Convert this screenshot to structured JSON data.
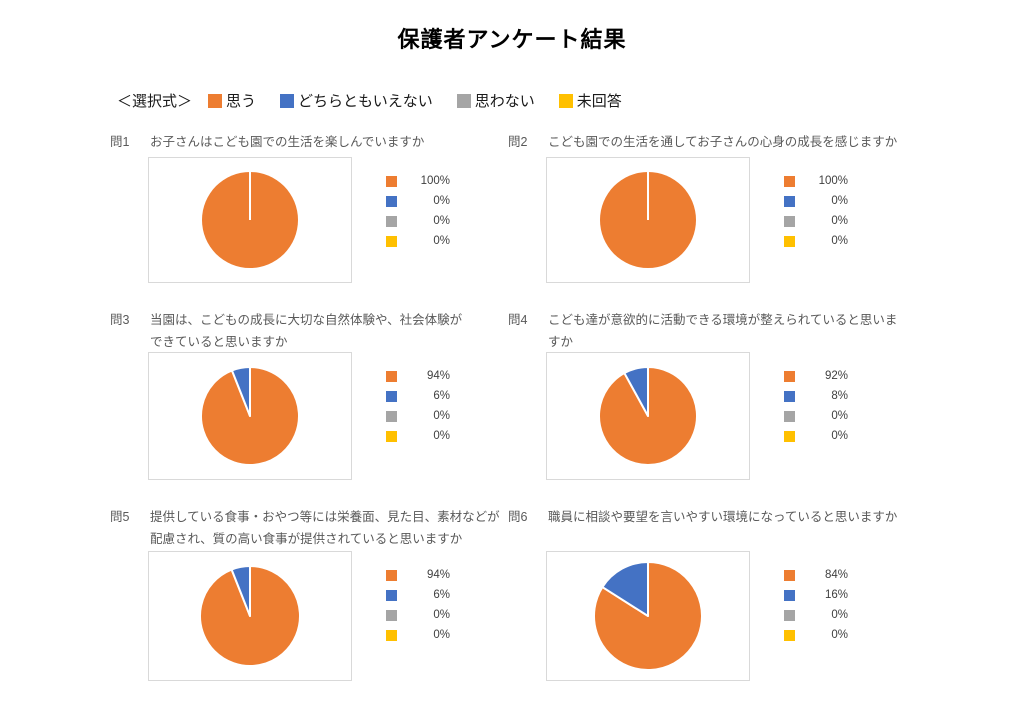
{
  "title": "保護者アンケート結果",
  "colors": [
    "#ED7D31",
    "#4472C4",
    "#A5A5A5",
    "#FFC000"
  ],
  "legend": {
    "prefix": "＜選択式＞",
    "items": [
      "思う",
      "どちらともいえない",
      "思わない",
      "未回答"
    ]
  },
  "chart_data": [
    {
      "type": "pie",
      "question_no": "問1",
      "question": "お子さんはこども園での生活を楽しんでいますか",
      "categories": [
        "思う",
        "どちらともいえない",
        "思わない",
        "未回答"
      ],
      "values": [
        100,
        0,
        0,
        0
      ],
      "labels": [
        "100%",
        "0%",
        "0%",
        "0%"
      ],
      "legend_position": "right"
    },
    {
      "type": "pie",
      "question_no": "問2",
      "question": "こども園での生活を通してお子さんの心身の成長を感じますか",
      "categories": [
        "思う",
        "どちらともいえない",
        "思わない",
        "未回答"
      ],
      "values": [
        100,
        0,
        0,
        0
      ],
      "labels": [
        "100%",
        "0%",
        "0%",
        "0%"
      ],
      "legend_position": "right"
    },
    {
      "type": "pie",
      "question_no": "問3",
      "question": "当園は、こどもの成長に大切な自然体験や、社会体験が\nできていると思いますか",
      "categories": [
        "思う",
        "どちらともいえない",
        "思わない",
        "未回答"
      ],
      "values": [
        94,
        6,
        0,
        0
      ],
      "labels": [
        "94%",
        "6%",
        "0%",
        "0%"
      ],
      "legend_position": "right"
    },
    {
      "type": "pie",
      "question_no": "問4",
      "question": "こども達が意欲的に活動できる環境が整えられていると思いますか",
      "categories": [
        "思う",
        "どちらともいえない",
        "思わない",
        "未回答"
      ],
      "values": [
        92,
        8,
        0,
        0
      ],
      "labels": [
        "92%",
        "8%",
        "0%",
        "0%"
      ],
      "legend_position": "right"
    },
    {
      "type": "pie",
      "question_no": "問5",
      "question": "提供している食事・おやつ等には栄養面、見た目、素材などが\n配慮され、質の高い食事が提供されていると思いますか",
      "categories": [
        "思う",
        "どちらともいえない",
        "思わない",
        "未回答"
      ],
      "values": [
        94,
        6,
        0,
        0
      ],
      "labels": [
        "94%",
        "6%",
        "0%",
        "0%"
      ],
      "legend_position": "right"
    },
    {
      "type": "pie",
      "question_no": "問6",
      "question": "職員に相談や要望を言いやすい環境になっていると思いますか",
      "categories": [
        "思う",
        "どちらともいえない",
        "思わない",
        "未回答"
      ],
      "values": [
        84,
        16,
        0,
        0
      ],
      "labels": [
        "84%",
        "16%",
        "0%",
        "0%"
      ],
      "legend_position": "right"
    }
  ]
}
